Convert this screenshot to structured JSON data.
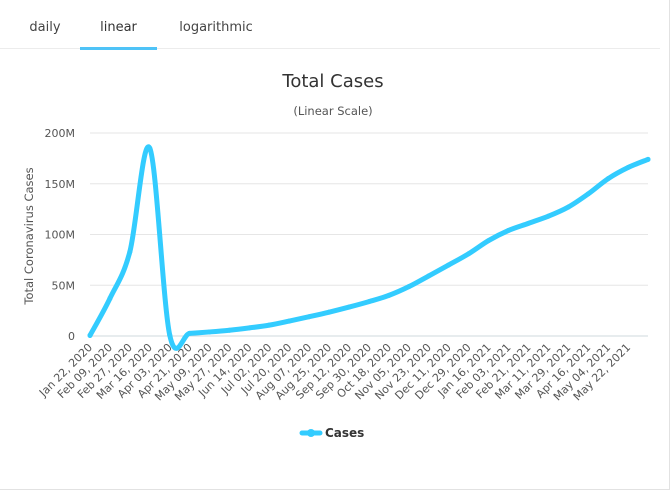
{
  "tabs": [
    {
      "label": "daily",
      "active": false
    },
    {
      "label": "linear",
      "active": true
    },
    {
      "label": "logarithmic",
      "active": false
    }
  ],
  "accent_color": "#4fc3f7",
  "chart_data": {
    "type": "line",
    "title": "Total Cases",
    "subtitle": "(Linear Scale)",
    "ylabel": "Total Coronavirus Cases",
    "xlabel": "",
    "ylim": [
      0,
      200000000
    ],
    "yticks": [
      0,
      50000000,
      100000000,
      150000000,
      200000000
    ],
    "ytick_labels": [
      "0",
      "50M",
      "100M",
      "150M",
      "200M"
    ],
    "xtick_labels": [
      "Jan 22, 2020",
      "Feb 09, 2020",
      "Feb 27, 2020",
      "Mar 16, 2020",
      "Apr 03, 2020",
      "Apr 21, 2020",
      "May 09, 2020",
      "May 27, 2020",
      "Jun 14, 2020",
      "Jul 02, 2020",
      "Jul 20, 2020",
      "Aug 07, 2020",
      "Aug 25, 2020",
      "Sep 12, 2020",
      "Sep 30, 2020",
      "Oct 18, 2020",
      "Nov 05, 2020",
      "Nov 23, 2020",
      "Dec 11, 2020",
      "Dec 29, 2020",
      "Jan 16, 2021",
      "Feb 03, 2021",
      "Feb 21, 2021",
      "Mar 11, 2021",
      "Mar 29, 2021",
      "Apr 16, 2021",
      "May 04, 2021",
      "May 22, 2021"
    ],
    "grid": true,
    "legend_position": "bottom-center",
    "series": [
      {
        "name": "Cases",
        "color": "#33ccff",
        "x": [
          "Jan 22, 2020",
          "Feb 09, 2020",
          "Feb 27, 2020",
          "Mar 16, 2020",
          "Apr 03, 2020",
          "Apr 21, 2020",
          "May 09, 2020",
          "May 27, 2020",
          "Jun 14, 2020",
          "Jul 02, 2020",
          "Jul 20, 2020",
          "Aug 07, 2020",
          "Aug 25, 2020",
          "Sep 12, 2020",
          "Sep 30, 2020",
          "Oct 18, 2020",
          "Nov 05, 2020",
          "Nov 23, 2020",
          "Dec 11, 2020",
          "Dec 29, 2020",
          "Jan 16, 2021",
          "Feb 03, 2021",
          "Feb 21, 2021",
          "Mar 11, 2021",
          "Mar 29, 2021",
          "Apr 16, 2021",
          "May 04, 2021",
          "May 22, 2021",
          "Jun 09, 2021"
        ],
        "values": [
          560000,
          37000000,
          83000000,
          185000000,
          1000000,
          2600000,
          4000000,
          5700000,
          8000000,
          10700000,
          14700000,
          19000000,
          23500000,
          28500000,
          33900000,
          40000000,
          48600000,
          59200000,
          70000000,
          81000000,
          94000000,
          104000000,
          111000000,
          118000000,
          127000000,
          140000000,
          155000000,
          166000000,
          174000000
        ]
      }
    ]
  }
}
